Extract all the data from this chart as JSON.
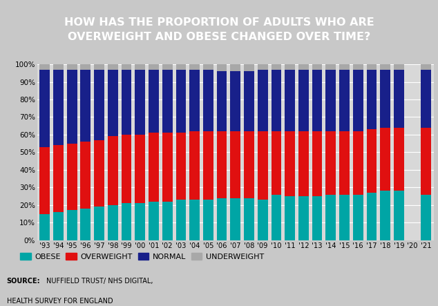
{
  "years": [
    "'93",
    "'94",
    "'95",
    "'96",
    "'97",
    "'98",
    "'99",
    "'00",
    "'01",
    "'02",
    "'03",
    "'04",
    "'05",
    "'06",
    "'07",
    "'08",
    "'09",
    "'10",
    "'11",
    "'12",
    "'13",
    "'14",
    "'15",
    "'16",
    "'17",
    "'18",
    "'19",
    "'20",
    "'21"
  ],
  "obese": [
    15,
    16,
    17,
    18,
    19,
    20,
    21,
    21,
    22,
    22,
    23,
    23,
    23,
    24,
    24,
    24,
    23,
    26,
    25,
    25,
    25,
    26,
    26,
    26,
    27,
    28,
    28,
    0,
    26
  ],
  "overweight": [
    38,
    38,
    38,
    38,
    38,
    39,
    39,
    39,
    39,
    39,
    38,
    39,
    39,
    38,
    38,
    38,
    39,
    36,
    37,
    37,
    37,
    36,
    36,
    36,
    36,
    36,
    36,
    0,
    38
  ],
  "normal": [
    44,
    43,
    42,
    41,
    40,
    38,
    37,
    37,
    36,
    36,
    36,
    35,
    35,
    34,
    34,
    34,
    35,
    35,
    35,
    35,
    35,
    35,
    35,
    35,
    34,
    33,
    33,
    0,
    33
  ],
  "underweight": [
    3,
    3,
    3,
    3,
    3,
    3,
    3,
    3,
    3,
    3,
    3,
    3,
    3,
    4,
    4,
    4,
    3,
    3,
    3,
    3,
    3,
    3,
    3,
    3,
    3,
    3,
    3,
    0,
    3
  ],
  "colors": {
    "obese": "#00a5a5",
    "overweight": "#e01010",
    "normal": "#18208a",
    "underweight": "#a8a8a8"
  },
  "title_line1": "HOW HAS THE PROPORTION OF ADULTS WHO ARE",
  "title_line2": "OVERWEIGHT AND OBESE CHANGED OVER TIME?",
  "title_bg": "#5a2d82",
  "legend_labels": [
    "OBESE",
    "OVERWEIGHT",
    "NORMAL",
    "UNDERWEIGHT"
  ],
  "ylim": [
    0,
    100
  ],
  "yticks": [
    0,
    10,
    20,
    30,
    40,
    50,
    60,
    70,
    80,
    90,
    100
  ],
  "background_color": "#c8c8c8",
  "chart_bg": "#d8d8d8"
}
